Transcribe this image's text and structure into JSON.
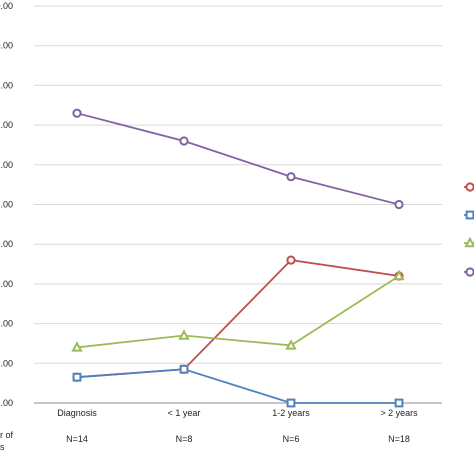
{
  "chart_data": {
    "type": "line",
    "categories": [
      "Diagnosis",
      "< 1 year",
      "1-2 years",
      "> 2 years"
    ],
    "n_labels": [
      "N=14",
      "N=8",
      "N=6",
      "N=18"
    ],
    "row_label_lines": [
      "r of",
      "s"
    ],
    "ytick_labels": [
      ".00",
      ".00",
      ".00",
      ".00",
      ".00",
      ".00",
      ".00",
      ".00",
      ".00",
      "0.00",
      "0.00"
    ],
    "ylim": [
      0,
      10
    ],
    "grid": true,
    "legend_position": "right",
    "series": [
      {
        "color": "#c0504d",
        "marker": "circle",
        "values": [
          0.65,
          0.85,
          3.6,
          3.2
        ]
      },
      {
        "color": "#4f81bd",
        "marker": "square",
        "values": [
          0.65,
          0.85,
          0.0,
          0.0
        ]
      },
      {
        "color": "#9bbb59",
        "marker": "triangle",
        "values": [
          1.4,
          1.7,
          1.45,
          3.2
        ]
      },
      {
        "color": "#8064a2",
        "marker": "circle",
        "values": [
          7.3,
          6.6,
          5.7,
          5.0
        ]
      }
    ]
  }
}
